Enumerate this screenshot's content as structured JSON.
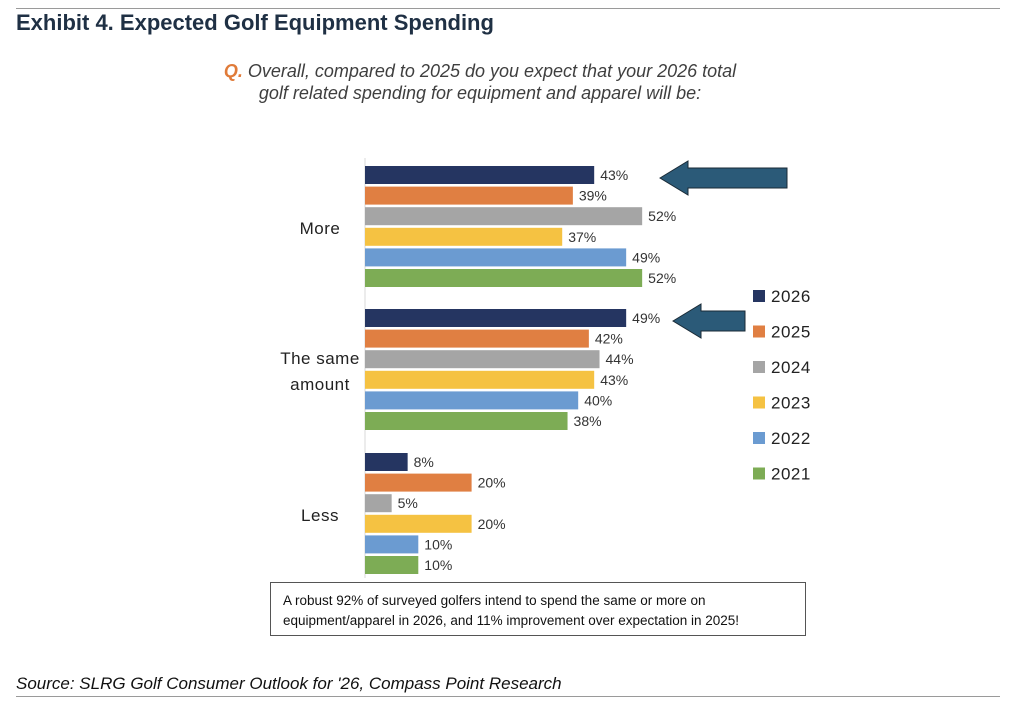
{
  "header": {
    "title": "Exhibit 4. Expected Golf Equipment Spending",
    "question_prefix": "Q.",
    "question_line1": "Overall, compared to 2025 do you expect that your 2026 total",
    "question_line2": "golf related spending for equipment and apparel will be:"
  },
  "chart_data": {
    "type": "bar",
    "orientation": "horizontal",
    "title": "Overall, compared to 2025 do you expect that your 2026 total golf related spending for equipment and apparel will be:",
    "categories": [
      {
        "label_lines": [
          "More"
        ]
      },
      {
        "label_lines": [
          "The same",
          "amount"
        ]
      },
      {
        "label_lines": [
          "Less"
        ]
      }
    ],
    "category_names": [
      "More",
      "The same amount",
      "Less"
    ],
    "series": [
      {
        "name": "2026",
        "color": "#253561",
        "values": [
          43,
          49,
          8
        ]
      },
      {
        "name": "2025",
        "color": "#e07f42",
        "values": [
          39,
          42,
          20
        ]
      },
      {
        "name": "2024",
        "color": "#a5a5a5",
        "values": [
          52,
          44,
          5
        ]
      },
      {
        "name": "2023",
        "color": "#f5c242",
        "values": [
          37,
          43,
          20
        ]
      },
      {
        "name": "2022",
        "color": "#6b9bd1",
        "values": [
          49,
          40,
          10
        ]
      },
      {
        "name": "2021",
        "color": "#7dac55",
        "values": [
          52,
          38,
          10
        ]
      }
    ],
    "value_suffix": "%",
    "xlim": [
      0,
      100
    ],
    "grid": false,
    "legend_position": "right",
    "annotations": [
      {
        "type": "arrow",
        "points_to": "More / 2026",
        "color": "#2b5a78"
      },
      {
        "type": "arrow",
        "points_to": "The same amount / 2026",
        "color": "#2b5a78"
      }
    ]
  },
  "callout": {
    "line1": "A robust 92% of surveyed golfers intend to spend the same or more on",
    "line2": "equipment/apparel in 2026, and 11% improvement over expectation in 2025!"
  },
  "footer": {
    "source": "Source: SLRG Golf Consumer Outlook for '26, Compass Point Research"
  }
}
